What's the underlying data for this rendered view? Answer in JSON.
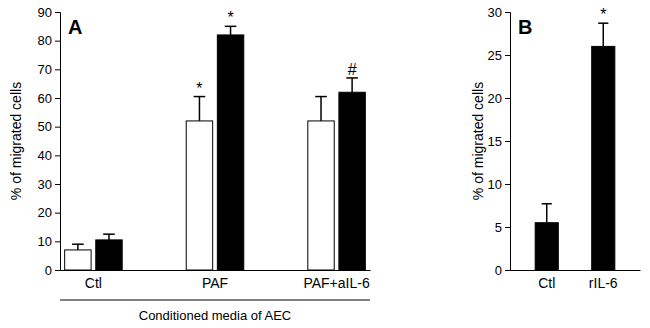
{
  "chart_data": [
    {
      "type": "bar",
      "title": "A",
      "ylabel": "% of migrated cells",
      "xlabel": "Conditioned media of AEC",
      "categories": [
        "Ctl",
        "PAF",
        "PAF+aIL-6"
      ],
      "series": [
        {
          "color": "#ffffff",
          "values": [
            7,
            52,
            52
          ],
          "errors": [
            2,
            8.5,
            8.5
          ],
          "annotations": [
            null,
            "*",
            null
          ]
        },
        {
          "color": "#000000",
          "values": [
            10.5,
            82,
            62
          ],
          "errors": [
            2,
            3,
            5
          ],
          "annotations": [
            null,
            "*",
            "#"
          ]
        }
      ],
      "ylim": [
        0,
        90
      ],
      "yticks": [
        0,
        10,
        20,
        30,
        40,
        50,
        60,
        70,
        80,
        90
      ]
    },
    {
      "type": "bar",
      "title": "B",
      "ylabel": "% of migrated cells",
      "categories": [
        "Ctl",
        "rIL-6"
      ],
      "series": [
        {
          "color": "#000000",
          "values": [
            5.5,
            26
          ],
          "errors": [
            2.2,
            2.7
          ],
          "annotations": [
            null,
            "*"
          ]
        }
      ],
      "ylim": [
        0,
        30
      ],
      "yticks": [
        0,
        5,
        10,
        15,
        20,
        25,
        30
      ]
    }
  ]
}
